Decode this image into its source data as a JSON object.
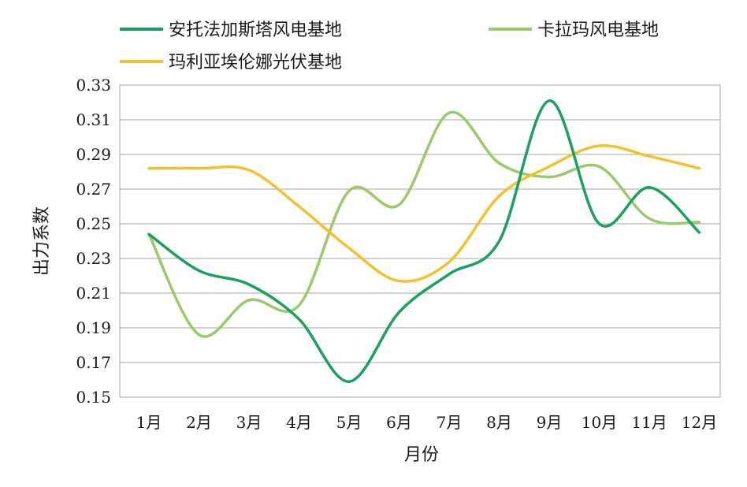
{
  "chart_data": {
    "type": "line",
    "xlabel": "月份",
    "ylabel": "出力系数",
    "categories": [
      "1月",
      "2月",
      "3月",
      "4月",
      "5月",
      "6月",
      "7月",
      "8月",
      "9月",
      "10月",
      "11月",
      "12月"
    ],
    "ylim": [
      0.15,
      0.33
    ],
    "yticks": [
      "0.33",
      "0.31",
      "0.29",
      "0.27",
      "0.25",
      "0.23",
      "0.21",
      "0.19",
      "0.17",
      "0.15"
    ],
    "grid": true,
    "smooth": true,
    "legend_position": "top",
    "series": [
      {
        "name": "安托法加斯塔风电基地",
        "color": "#1aa05f",
        "values": [
          0.244,
          0.223,
          0.215,
          0.195,
          0.159,
          0.199,
          0.221,
          0.24,
          0.321,
          0.25,
          0.271,
          0.245
        ]
      },
      {
        "name": "卡拉玛风电基地",
        "color": "#9cc96b",
        "values": [
          0.244,
          0.186,
          0.206,
          0.203,
          0.269,
          0.261,
          0.314,
          0.285,
          0.277,
          0.283,
          0.253,
          0.251
        ]
      },
      {
        "name": "玛利亚埃伦娜光伏基地",
        "color": "#f2c12e",
        "values": [
          0.282,
          0.282,
          0.281,
          0.26,
          0.236,
          0.217,
          0.228,
          0.266,
          0.283,
          0.295,
          0.289,
          0.282
        ]
      }
    ]
  }
}
